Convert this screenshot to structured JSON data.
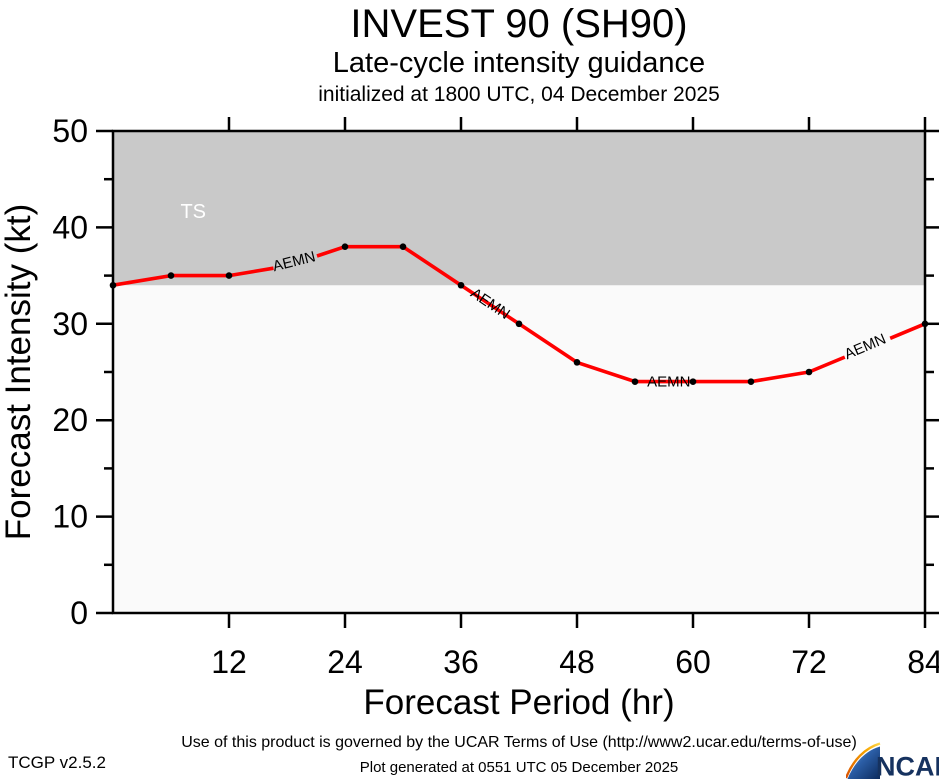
{
  "header": {
    "title": "INVEST 90 (SH90)",
    "subtitle": "Late-cycle intensity guidance",
    "init_line": "initialized at 1800 UTC, 04 December 2025"
  },
  "footer": {
    "terms": "Use of this product is governed by the UCAR Terms of Use (http://www2.ucar.edu/terms-of-use)",
    "version": "TCGP v2.5.2",
    "generated": "Plot generated at 0551 UTC   05 December 2025",
    "logo_text": "NCAR"
  },
  "colors": {
    "series": "#ff0000",
    "marker": "#000000",
    "ts_zone": "#c9c9c9",
    "plot_bg": "#fafafa",
    "axis": "#000000",
    "ts_label": "#ffffff",
    "logo_navy": "#16325f"
  },
  "chart_data": {
    "type": "line",
    "title": "INVEST 90 (SH90) Late-cycle intensity guidance",
    "xlabel": "Forecast Period (hr)",
    "ylabel": "Forecast Intensity (kt)",
    "xlim": [
      0,
      84
    ],
    "ylim": [
      0,
      50
    ],
    "x_ticks": [
      12,
      24,
      36,
      48,
      60,
      72,
      84
    ],
    "y_ticks_major": [
      0,
      10,
      20,
      30,
      40,
      50
    ],
    "y_ticks_minor": [
      5,
      15,
      25,
      35,
      45
    ],
    "grid": false,
    "shaded_region": {
      "label": "TS",
      "from_kt": 34,
      "to_kt": 50,
      "label_hour": 8.3,
      "label_kt": 41.7
    },
    "series": [
      {
        "name": "AEMN",
        "hours": [
          0,
          6,
          12,
          18,
          24,
          30,
          36,
          42,
          48,
          54,
          60,
          66,
          72,
          78,
          84
        ],
        "values": [
          34,
          35,
          35,
          36,
          38,
          38,
          34,
          30,
          26,
          24,
          24,
          24,
          25,
          27.5,
          30
        ],
        "marker_hours": [
          0,
          6,
          12,
          24,
          30,
          36,
          42,
          48,
          54,
          60,
          66,
          72,
          84
        ]
      }
    ],
    "line_labels": [
      {
        "text": "AEMN",
        "hour": 18.85,
        "kt": 36.5,
        "angle": -14
      },
      {
        "text": "AEMN",
        "hour": 38.75,
        "kt": 32.2,
        "angle": 34
      },
      {
        "text": "AEMN",
        "hour": 57.5,
        "kt": 24.0,
        "angle": 0
      },
      {
        "text": "AEMN",
        "hour": 78.0,
        "kt": 27.7,
        "angle": -23
      }
    ],
    "label_gaps": [
      [
        16.6,
        21.1
      ],
      [
        37.0,
        40.5
      ],
      [
        54.5,
        59.5
      ],
      [
        75.7,
        80.4
      ]
    ]
  }
}
